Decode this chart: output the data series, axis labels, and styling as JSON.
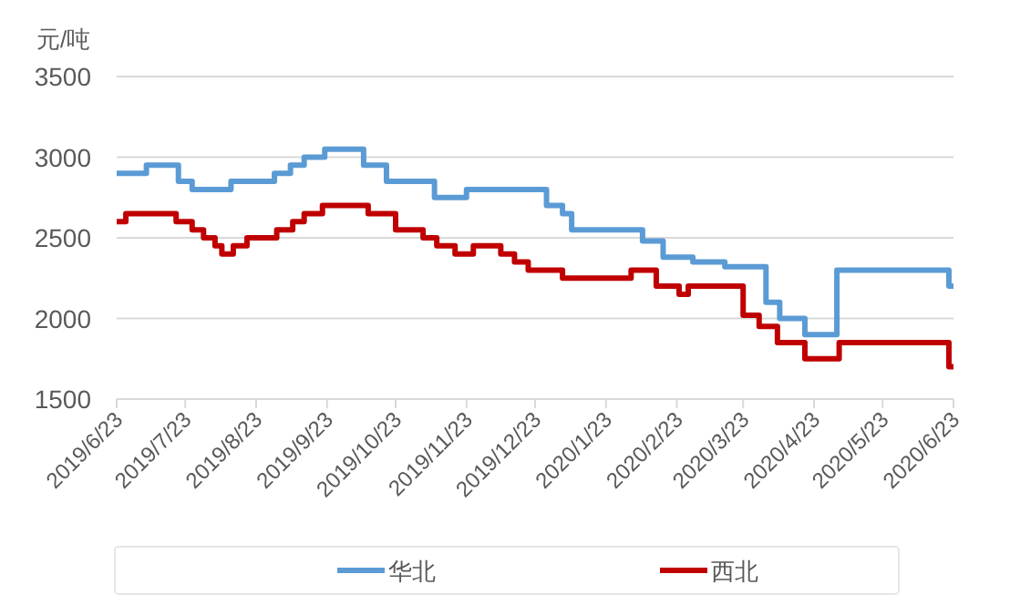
{
  "chart_data": {
    "type": "step",
    "ylabel": "元/吨",
    "ylim": [
      1500,
      3500
    ],
    "yticks": [
      1500,
      2000,
      2500,
      3000,
      3500
    ],
    "xlim": [
      "2019-06-23",
      "2020-06-23"
    ],
    "xticks": [
      {
        "value": "2019-06-23",
        "label": "2019/6/23"
      },
      {
        "value": "2019-07-23",
        "label": "2019/7/23"
      },
      {
        "value": "2019-08-23",
        "label": "2019/8/23"
      },
      {
        "value": "2019-09-23",
        "label": "2019/9/23"
      },
      {
        "value": "2019-10-23",
        "label": "2019/10/23"
      },
      {
        "value": "2019-11-23",
        "label": "2019/11/23"
      },
      {
        "value": "2019-12-23",
        "label": "2019/12/23"
      },
      {
        "value": "2020-01-23",
        "label": "2020/1/23"
      },
      {
        "value": "2020-02-23",
        "label": "2020/2/23"
      },
      {
        "value": "2020-03-23",
        "label": "2020/3/23"
      },
      {
        "value": "2020-04-23",
        "label": "2020/4/23"
      },
      {
        "value": "2020-05-23",
        "label": "2020/5/23"
      },
      {
        "value": "2020-06-23",
        "label": "2020/6/23"
      }
    ],
    "grid": "y",
    "legend": "bottom",
    "line_style": "solid",
    "series": [
      {
        "name": "华北",
        "color": "#5b9bd5",
        "x": [
          "2019-06-23",
          "2019-07-06",
          "2019-07-20",
          "2019-07-26",
          "2019-08-12",
          "2019-08-31",
          "2019-09-07",
          "2019-09-13",
          "2019-09-22",
          "2019-10-09",
          "2019-10-19",
          "2019-11-09",
          "2019-11-23",
          "2019-12-28",
          "2020-01-04",
          "2020-01-08",
          "2020-02-08",
          "2020-02-17",
          "2020-03-01",
          "2020-03-15",
          "2020-04-02",
          "2020-04-08",
          "2020-04-19",
          "2020-05-03",
          "2020-06-21",
          "2020-06-23"
        ],
        "values": [
          2900,
          2950,
          2850,
          2800,
          2850,
          2900,
          2950,
          3000,
          3050,
          2950,
          2850,
          2750,
          2800,
          2700,
          2650,
          2550,
          2480,
          2380,
          2350,
          2320,
          2100,
          2000,
          1900,
          2300,
          2200,
          2200
        ]
      },
      {
        "name": "西北",
        "color": "#c00000",
        "x": [
          "2019-06-23",
          "2019-06-27",
          "2019-07-19",
          "2019-07-26",
          "2019-07-31",
          "2019-08-05",
          "2019-08-08",
          "2019-08-13",
          "2019-08-19",
          "2019-09-01",
          "2019-09-08",
          "2019-09-13",
          "2019-09-21",
          "2019-10-11",
          "2019-10-23",
          "2019-11-04",
          "2019-11-10",
          "2019-11-18",
          "2019-11-26",
          "2019-12-08",
          "2019-12-14",
          "2019-12-20",
          "2020-01-04",
          "2020-02-03",
          "2020-02-14",
          "2020-02-24",
          "2020-02-28",
          "2020-03-23",
          "2020-03-30",
          "2020-04-07",
          "2020-04-19",
          "2020-05-04",
          "2020-06-21",
          "2020-06-23"
        ],
        "values": [
          2600,
          2650,
          2600,
          2550,
          2500,
          2450,
          2400,
          2450,
          2500,
          2550,
          2600,
          2650,
          2700,
          2650,
          2550,
          2500,
          2450,
          2400,
          2450,
          2400,
          2350,
          2300,
          2250,
          2300,
          2200,
          2150,
          2200,
          2020,
          1950,
          1850,
          1750,
          1850,
          1700,
          1700
        ]
      }
    ]
  }
}
